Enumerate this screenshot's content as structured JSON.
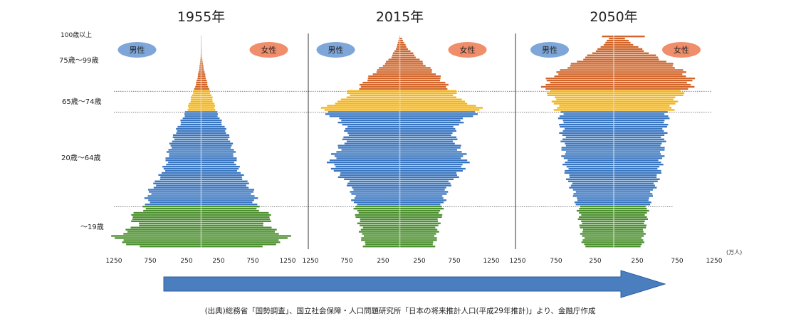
{
  "chart_data": {
    "type": "population-pyramid",
    "panels": [
      {
        "title": "1955年",
        "male_label": "男性",
        "female_label": "女性",
        "band_profile": {
          "0-19": [
            {
              "age": 0,
              "male": 880,
              "female": 880
            },
            {
              "age": 2,
              "male": 1150,
              "female": 1150
            },
            {
              "age": 5,
              "male": 1230,
              "female": 1230
            },
            {
              "age": 8,
              "male": 1030,
              "female": 1030
            },
            {
              "age": 11,
              "male": 900,
              "female": 900
            },
            {
              "age": 14,
              "male": 1040,
              "female": 1040
            },
            {
              "age": 17,
              "male": 860,
              "female": 860
            },
            {
              "age": 19,
              "male": 800,
              "female": 800
            }
          ],
          "20-64": [
            {
              "age": 20,
              "male": 780,
              "female": 780
            },
            {
              "age": 25,
              "male": 760,
              "female": 760
            },
            {
              "age": 30,
              "male": 660,
              "female": 660
            },
            {
              "age": 35,
              "male": 560,
              "female": 560
            },
            {
              "age": 40,
              "male": 500,
              "female": 500
            },
            {
              "age": 45,
              "male": 470,
              "female": 470
            },
            {
              "age": 50,
              "male": 420,
              "female": 420
            },
            {
              "age": 55,
              "male": 360,
              "female": 360
            },
            {
              "age": 60,
              "male": 280,
              "female": 280
            },
            {
              "age": 64,
              "male": 220,
              "female": 220
            }
          ],
          "65-74": [
            {
              "age": 65,
              "male": 200,
              "female": 210
            },
            {
              "age": 70,
              "male": 150,
              "female": 165
            },
            {
              "age": 74,
              "male": 110,
              "female": 125
            }
          ],
          "75-99": [
            {
              "age": 75,
              "male": 95,
              "female": 110
            },
            {
              "age": 80,
              "male": 55,
              "female": 70
            },
            {
              "age": 85,
              "male": 25,
              "female": 35
            },
            {
              "age": 90,
              "male": 8,
              "female": 12
            },
            {
              "age": 95,
              "male": 3,
              "female": 5
            },
            {
              "age": 99,
              "male": 1,
              "female": 2
            }
          ]
        }
      },
      {
        "title": "2015年",
        "male_label": "男性",
        "female_label": "女性",
        "band_profile": {
          "0-19": [
            {
              "age": 0,
              "male": 480,
              "female": 460
            },
            {
              "age": 5,
              "male": 520,
              "female": 500
            },
            {
              "age": 10,
              "male": 540,
              "female": 520
            },
            {
              "age": 15,
              "male": 590,
              "female": 560
            },
            {
              "age": 19,
              "male": 600,
              "female": 570
            }
          ],
          "20-64": [
            {
              "age": 20,
              "male": 620,
              "female": 590
            },
            {
              "age": 25,
              "male": 640,
              "female": 620
            },
            {
              "age": 30,
              "male": 700,
              "female": 680
            },
            {
              "age": 35,
              "male": 860,
              "female": 820
            },
            {
              "age": 40,
              "male": 950,
              "female": 910
            },
            {
              "age": 45,
              "male": 870,
              "female": 850
            },
            {
              "age": 50,
              "male": 760,
              "female": 760
            },
            {
              "age": 55,
              "male": 720,
              "female": 730
            },
            {
              "age": 60,
              "male": 820,
              "female": 850
            },
            {
              "age": 64,
              "male": 1030,
              "female": 1080
            }
          ],
          "65-74": [
            {
              "age": 65,
              "male": 1060,
              "female": 1120
            },
            {
              "age": 68,
              "male": 940,
              "female": 980
            },
            {
              "age": 70,
              "male": 760,
              "female": 800
            },
            {
              "age": 74,
              "male": 680,
              "female": 740
            }
          ],
          "75-99": [
            {
              "age": 75,
              "male": 580,
              "female": 680
            },
            {
              "age": 80,
              "male": 440,
              "female": 560
            },
            {
              "age": 85,
              "male": 270,
              "female": 400
            },
            {
              "age": 90,
              "male": 120,
              "female": 230
            },
            {
              "age": 95,
              "male": 40,
              "female": 90
            },
            {
              "age": 99,
              "male": 12,
              "female": 30
            }
          ]
        }
      },
      {
        "title": "2050年",
        "male_label": "男性",
        "female_label": "女性",
        "band_profile": {
          "0-19": [
            {
              "age": 0,
              "male": 380,
              "female": 360
            },
            {
              "age": 5,
              "male": 400,
              "female": 380
            },
            {
              "age": 10,
              "male": 420,
              "female": 400
            },
            {
              "age": 15,
              "male": 440,
              "female": 420
            },
            {
              "age": 19,
              "male": 450,
              "female": 430
            }
          ],
          "20-64": [
            {
              "age": 20,
              "male": 470,
              "female": 450
            },
            {
              "age": 25,
              "male": 500,
              "female": 480
            },
            {
              "age": 30,
              "male": 560,
              "female": 540
            },
            {
              "age": 35,
              "male": 600,
              "female": 580
            },
            {
              "age": 40,
              "male": 620,
              "female": 600
            },
            {
              "age": 45,
              "male": 640,
              "female": 620
            },
            {
              "age": 50,
              "male": 640,
              "female": 630
            },
            {
              "age": 55,
              "male": 660,
              "female": 650
            },
            {
              "age": 60,
              "male": 670,
              "female": 670
            },
            {
              "age": 64,
              "male": 680,
              "female": 690
            }
          ],
          "65-74": [
            {
              "age": 65,
              "male": 720,
              "female": 730
            },
            {
              "age": 70,
              "male": 760,
              "female": 790
            },
            {
              "age": 74,
              "male": 850,
              "female": 900
            }
          ],
          "75-99": [
            {
              "age": 75,
              "male": 880,
              "female": 960
            },
            {
              "age": 78,
              "male": 860,
              "female": 990
            },
            {
              "age": 80,
              "male": 820,
              "female": 980
            },
            {
              "age": 85,
              "male": 620,
              "female": 820
            },
            {
              "age": 90,
              "male": 360,
              "female": 560
            },
            {
              "age": 95,
              "male": 160,
              "female": 300
            },
            {
              "age": 99,
              "male": 60,
              "female": 140
            },
            {
              "age": 100,
              "male": 160,
              "female": 420
            }
          ]
        }
      }
    ],
    "age_groups": [
      {
        "label": "100歳以上",
        "range": [
          100,
          100
        ],
        "color": "#d0662b"
      },
      {
        "label": "75歳～99歳",
        "range": [
          75,
          99
        ],
        "color": "#d0662b"
      },
      {
        "label": "65歳～74歳",
        "range": [
          65,
          74
        ],
        "color": "#f5b412"
      },
      {
        "label": "20歳～64歳",
        "range": [
          20,
          64
        ],
        "color": "#3a76c0"
      },
      {
        "label": "～19歳",
        "range": [
          0,
          19
        ],
        "color": "#4b8f2e"
      }
    ],
    "x_ticks": [
      "1250",
      "750",
      "250",
      "250",
      "750",
      "1250"
    ],
    "x_unit": "(万人)",
    "xlim": [
      -1250,
      1250
    ],
    "legend_colors": {
      "male": "#7fa6d8",
      "female": "#f08d6b"
    }
  },
  "footnote": "(出典)総務省「国勢調査」、国立社会保障・人口問題研究所「日本の将来推計人口(平成29年推計)」より、金融庁作成",
  "arrow_color": "#4a7ebf"
}
